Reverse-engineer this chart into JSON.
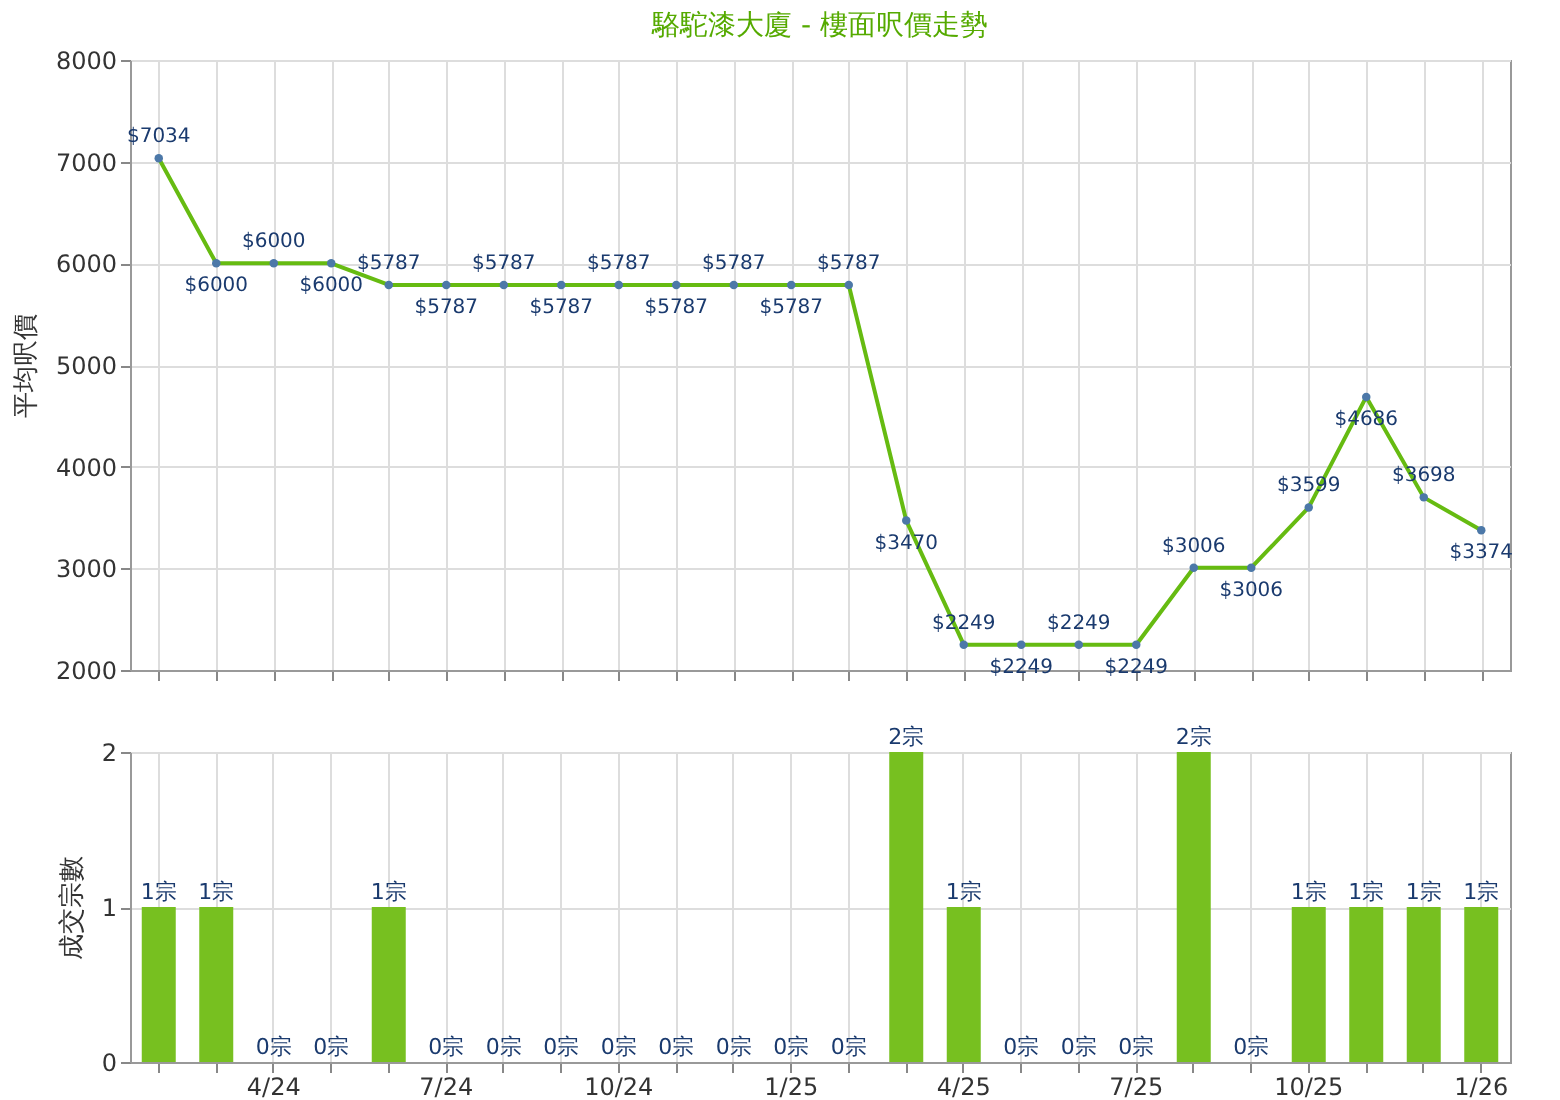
{
  "chart_data": [
    {
      "type": "line",
      "title": "駱駝漆大廈 - 樓面呎價走勢",
      "ylabel": "平均呎價",
      "categories": [
        null,
        null,
        null,
        null,
        null,
        null,
        null,
        null,
        null,
        null,
        null,
        null,
        null,
        null,
        null,
        null,
        null,
        null,
        null,
        null,
        null,
        null,
        null,
        null
      ],
      "series": [
        {
          "color": "#66bb11",
          "values": [
            7034,
            6000,
            6000,
            6000,
            5787,
            5787,
            5787,
            5787,
            5787,
            5787,
            5787,
            5787,
            5787,
            3470,
            2249,
            2249,
            2249,
            2249,
            3006,
            3006,
            3599,
            4686,
            3698,
            3374
          ],
          "value_labels": [
            "$7034",
            "$6000",
            "$6000",
            "$6000",
            "$5787",
            "$5787",
            "$5787",
            "$5787",
            "$5787",
            "$5787",
            "$5787",
            "$5787",
            "$5787",
            "$3470",
            "$2249",
            "$2249",
            "$2249",
            "$2249",
            "$3006",
            "$3006",
            "$3599",
            "$4686",
            "$3698",
            "$3374"
          ]
        }
      ],
      "ylim": [
        2000,
        8000
      ],
      "yticks": [
        2000,
        3000,
        4000,
        5000,
        6000,
        7000,
        8000
      ],
      "grid": true,
      "marker": "circle"
    },
    {
      "type": "bar",
      "ylabel": "成交宗數",
      "categories": [
        null,
        null,
        "4/24",
        null,
        null,
        "7/24",
        null,
        null,
        "10/24",
        null,
        null,
        "1/25",
        null,
        null,
        "4/25",
        null,
        null,
        "7/25",
        null,
        null,
        "10/25",
        null,
        null,
        "1/26"
      ],
      "series": [
        {
          "color": "#77c020",
          "values": [
            1,
            1,
            0,
            0,
            1,
            0,
            0,
            0,
            0,
            0,
            0,
            0,
            0,
            2,
            1,
            0,
            0,
            0,
            2,
            0,
            1,
            1,
            1,
            1
          ],
          "value_labels": [
            "1宗",
            "1宗",
            "0宗",
            "0宗",
            "1宗",
            "0宗",
            "0宗",
            "0宗",
            "0宗",
            "0宗",
            "0宗",
            "0宗",
            "0宗",
            "2宗",
            "1宗",
            "0宗",
            "0宗",
            "0宗",
            "2宗",
            "0宗",
            "1宗",
            "1宗",
            "1宗",
            "1宗"
          ]
        }
      ],
      "ylim": [
        0,
        2
      ],
      "yticks": [
        0,
        1,
        2
      ],
      "grid": true
    }
  ]
}
